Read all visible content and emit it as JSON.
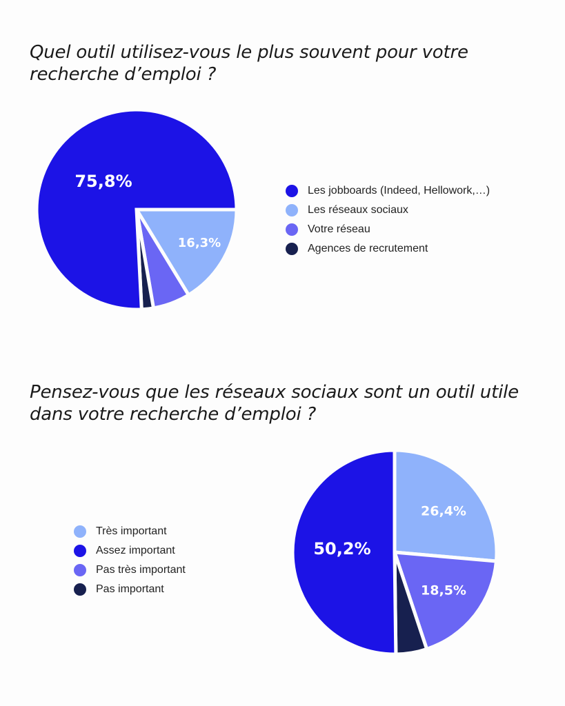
{
  "chart_data": [
    {
      "type": "pie",
      "title": "Quel outil utilisez-vous le plus souvent pour votre recherche d’emploi ?",
      "legend_position": "right",
      "slices": [
        {
          "label": "Les jobboards (Indeed, Hellowork,…)",
          "value": 75.8,
          "value_label": "75,8%",
          "color": "#1c13e6"
        },
        {
          "label": "Les réseaux sociaux",
          "value": 16.3,
          "value_label": "16,3%",
          "color": "#8fb2fb"
        },
        {
          "label": "Votre réseau",
          "value": 6.0,
          "value_label": "",
          "color": "#6a66f4"
        },
        {
          "label": "Agences de recrutement",
          "value": 1.9,
          "value_label": "",
          "color": "#17204f"
        }
      ]
    },
    {
      "type": "pie",
      "title": "Pensez-vous que les réseaux sociaux sont un outil utile dans votre recherche d’emploi ?",
      "legend_position": "left",
      "slices": [
        {
          "label": "Très important",
          "value": 26.4,
          "value_label": "26,4%",
          "color": "#8fb2fb"
        },
        {
          "label": "Assez important",
          "value": 50.2,
          "value_label": "50,2%",
          "color": "#1c13e6"
        },
        {
          "label": "Pas très important",
          "value": 18.5,
          "value_label": "18,5%",
          "color": "#6a66f4"
        },
        {
          "label": "Pas important",
          "value": 4.9,
          "value_label": "",
          "color": "#17204f"
        }
      ]
    }
  ]
}
